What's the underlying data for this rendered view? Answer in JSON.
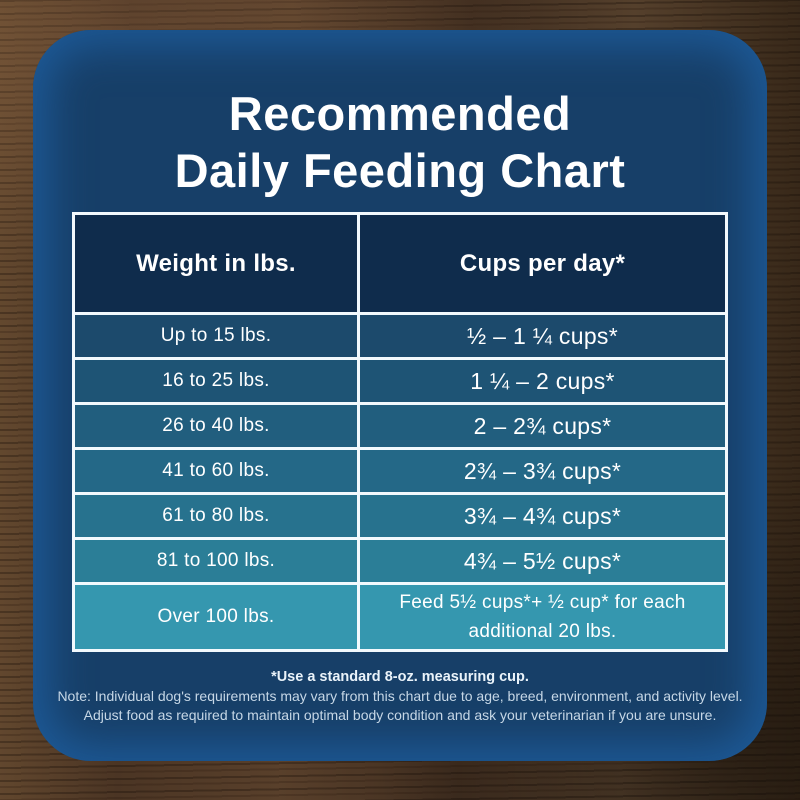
{
  "title": {
    "line1": "Recommended",
    "line2": "Daily Feeding Chart"
  },
  "table": {
    "headers": [
      "Weight in lbs.",
      "Cups per day*"
    ],
    "rows": [
      {
        "weight": "Up to 15 lbs.",
        "cups": "½ – 1 ¼ cups*"
      },
      {
        "weight": "16 to 25 lbs.",
        "cups": "1 ¼ –  2 cups*"
      },
      {
        "weight": "26 to 40 lbs.",
        "cups": "2 – 2¾ cups*"
      },
      {
        "weight": "41 to 60 lbs.",
        "cups": "2¾ – 3¾ cups*"
      },
      {
        "weight": "61 to 80 lbs.",
        "cups": "3¾ – 4¾ cups*"
      },
      {
        "weight": "81 to 100 lbs.",
        "cups": "4¾ – 5½ cups*"
      },
      {
        "weight": "Over 100 lbs.",
        "cups": "Feed 5½ cups*+ ½ cup* for each additional 20 lbs."
      }
    ],
    "header_color": "#0f2c4c",
    "row_colors": [
      "#1c4a6c",
      "#1e5475",
      "#215e7e",
      "#246887",
      "#27728e",
      "#2b7e97",
      "#3597af"
    ]
  },
  "footnote": {
    "measuring": "*Use a standard 8-oz. measuring cup.",
    "note_line1": "Note: Individual dog's requirements may vary from this chart due to age, breed, environment, and activity level.",
    "note_line2": "Adjust food as required to maintain optimal body condition and ask your veterinarian if you are unsure."
  },
  "colors": {
    "card_navy": "#173f68",
    "card_rim": "#1d5996",
    "table_border": "#f2f9fd",
    "title_color": "#ffffff",
    "footnote_bold": "#eaf3fa",
    "footnote": "#c6d7e6",
    "wood_brown": "#4a3524"
  },
  "chart_data": {
    "type": "table",
    "title": "Recommended Daily Feeding Chart",
    "columns": [
      "Weight in lbs.",
      "Cups per day*"
    ],
    "rows": [
      [
        "Up to 15 lbs.",
        "½ – 1 ¼ cups*"
      ],
      [
        "16 to 25 lbs.",
        "1 ¼ – 2 cups*"
      ],
      [
        "26 to 40 lbs.",
        "2 – 2¾ cups*"
      ],
      [
        "41 to 60 lbs.",
        "2¾ – 3¾ cups*"
      ],
      [
        "61 to 80 lbs.",
        "3¾ – 4¾ cups*"
      ],
      [
        "81 to 100 lbs.",
        "4¾ – 5½ cups*"
      ],
      [
        "Over 100 lbs.",
        "Feed 5½ cups*+ ½ cup* for each additional 20 lbs."
      ]
    ],
    "footnotes": [
      "*Use a standard 8-oz. measuring cup.",
      "Note: Individual dog's requirements may vary from this chart due to age, breed, environment, and activity level.",
      "Adjust food as required to maintain optimal body condition and ask your veterinarian if you are unsure."
    ],
    "legend_position": "none",
    "grid": true
  }
}
